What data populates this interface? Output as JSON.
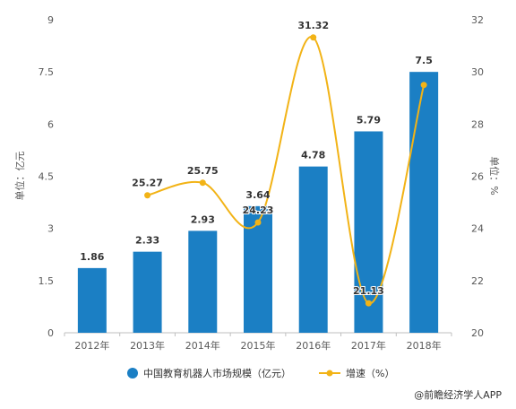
{
  "chart_data": {
    "type": "bar",
    "categories": [
      "2012年",
      "2013年",
      "2014年",
      "2015年",
      "2016年",
      "2017年",
      "2018年"
    ],
    "series": [
      {
        "name": "中国教育机器人市场规模（亿元）",
        "type": "bar",
        "axis": "left",
        "color": "#1b7fc4",
        "values": [
          1.86,
          2.33,
          2.93,
          3.64,
          4.78,
          5.79,
          7.5
        ],
        "value_labels": [
          "1.86",
          "2.33",
          "2.93",
          "3.64",
          "4.78",
          "5.79",
          "7.5"
        ]
      },
      {
        "name": "增速（%）",
        "type": "line",
        "axis": "right",
        "color": "#f2b316",
        "values": [
          null,
          25.27,
          25.75,
          24.23,
          31.32,
          21.13,
          29.5
        ],
        "value_labels": [
          "",
          "25.27",
          "25.75",
          "24.23",
          "31.32",
          "21.13",
          ""
        ]
      }
    ],
    "y_left": {
      "label": "单位：亿元",
      "min": 0,
      "max": 9,
      "ticks": [
        0,
        1.5,
        3,
        4.5,
        6,
        7.5,
        9
      ],
      "tick_labels": [
        "0",
        "1.5",
        "3",
        "4.5",
        "6",
        "7.5",
        "9"
      ]
    },
    "y_right": {
      "label": "单位：%",
      "min": 20,
      "max": 32,
      "ticks": [
        20,
        22,
        24,
        26,
        28,
        30,
        32
      ],
      "tick_labels": [
        "20",
        "22",
        "24",
        "26",
        "28",
        "30",
        "32"
      ]
    },
    "grid": false,
    "legend_position": "bottom-center"
  },
  "source": "@前瞻经济学人APP"
}
